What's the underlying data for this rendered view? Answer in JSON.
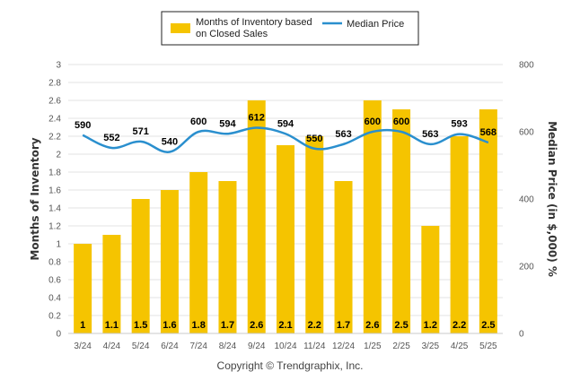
{
  "chart_data": {
    "type": "bar",
    "categories": [
      "3/24",
      "4/24",
      "5/24",
      "6/24",
      "7/24",
      "8/24",
      "9/24",
      "10/24",
      "11/24",
      "12/24",
      "1/25",
      "2/25",
      "3/25",
      "4/25",
      "5/25"
    ],
    "series": [
      {
        "name": "Months of Inventory based on Closed Sales",
        "type": "bar",
        "axis": "left",
        "values": [
          1,
          1.1,
          1.5,
          1.6,
          1.8,
          1.7,
          2.6,
          2.1,
          2.2,
          1.7,
          2.6,
          2.5,
          1.2,
          2.2,
          2.5
        ],
        "labels": [
          "1",
          "1.1",
          "1.5",
          "1.6",
          "1.8",
          "1.7",
          "2.6",
          "2.1",
          "2.2",
          "1.7",
          "2.6",
          "2.5",
          "1.2",
          "2.2",
          "2.5"
        ],
        "color": "#f5c400"
      },
      {
        "name": "Median Price",
        "type": "line",
        "axis": "right",
        "values": [
          590,
          552,
          571,
          540,
          600,
          594,
          612,
          594,
          550,
          563,
          600,
          600,
          563,
          593,
          568
        ],
        "color": "#2a8fce"
      }
    ],
    "legend": {
      "position": "top",
      "line1": "Months of Inventory based",
      "line2": "on Closed Sales",
      "line_entry": "Median Price"
    },
    "ylabel": "Months of Inventory",
    "ylim": [
      0,
      3
    ],
    "yticks": [
      "0",
      "0.2",
      "0.4",
      "0.6",
      "0.8",
      "1",
      "1.2",
      "1.4",
      "1.6",
      "1.8",
      "2",
      "2.2",
      "2.4",
      "2.6",
      "2.8",
      "3"
    ],
    "y2label": "Median Price (in $,000) %",
    "y2lim": [
      0,
      800
    ],
    "y2ticks": [
      "0",
      "200",
      "400",
      "600",
      "800"
    ],
    "grid": true
  },
  "footer": "Copyright © Trendgraphix, Inc."
}
